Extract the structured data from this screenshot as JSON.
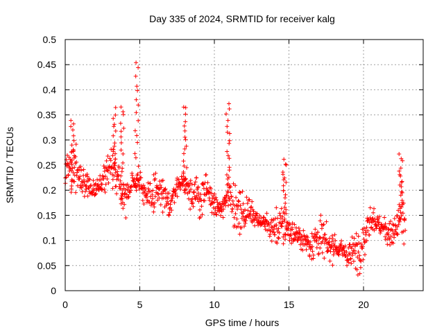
{
  "chart_data": {
    "type": "scatter",
    "title": "Day 335 of 2024, SRMTID for receiver kalg",
    "xlabel": "GPS time / hours",
    "ylabel": "SRMTID / TECUs",
    "xlim": [
      0,
      24
    ],
    "ylim": [
      0,
      0.5
    ],
    "xticks": [
      0,
      5,
      10,
      15,
      20
    ],
    "xtick_labels": [
      "0",
      "5",
      "10",
      "15",
      "20"
    ],
    "yticks": [
      0,
      0.05,
      0.1,
      0.15,
      0.2,
      0.25,
      0.3,
      0.35,
      0.4,
      0.45,
      0.5
    ],
    "ytick_labels": [
      "0",
      "0.05",
      "0.1",
      "0.15",
      "0.2",
      "0.25",
      "0.3",
      "0.35",
      "0.4",
      "0.45",
      "0.5"
    ],
    "grid": true,
    "marker": "+",
    "marker_color": "#ff0000",
    "trend": [
      [
        0.0,
        0.24
      ],
      [
        0.5,
        0.25
      ],
      [
        1.0,
        0.23
      ],
      [
        1.5,
        0.21
      ],
      [
        2.0,
        0.2
      ],
      [
        2.5,
        0.22
      ],
      [
        3.0,
        0.25
      ],
      [
        3.5,
        0.23
      ],
      [
        4.0,
        0.18
      ],
      [
        4.5,
        0.22
      ],
      [
        5.0,
        0.22
      ],
      [
        5.5,
        0.18
      ],
      [
        6.0,
        0.2
      ],
      [
        6.5,
        0.19
      ],
      [
        7.0,
        0.17
      ],
      [
        7.5,
        0.21
      ],
      [
        8.0,
        0.22
      ],
      [
        8.5,
        0.2
      ],
      [
        9.0,
        0.18
      ],
      [
        9.5,
        0.2
      ],
      [
        10.0,
        0.17
      ],
      [
        10.5,
        0.16
      ],
      [
        11.0,
        0.2
      ],
      [
        11.5,
        0.16
      ],
      [
        12.0,
        0.15
      ],
      [
        12.5,
        0.16
      ],
      [
        13.0,
        0.14
      ],
      [
        13.5,
        0.13
      ],
      [
        14.0,
        0.12
      ],
      [
        14.5,
        0.13
      ],
      [
        15.0,
        0.12
      ],
      [
        15.5,
        0.11
      ],
      [
        16.0,
        0.1
      ],
      [
        16.5,
        0.09
      ],
      [
        17.0,
        0.11
      ],
      [
        17.5,
        0.09
      ],
      [
        18.0,
        0.09
      ],
      [
        18.5,
        0.08
      ],
      [
        19.0,
        0.07
      ],
      [
        19.5,
        0.08
      ],
      [
        20.0,
        0.1
      ],
      [
        20.5,
        0.15
      ],
      [
        21.0,
        0.13
      ],
      [
        21.5,
        0.12
      ],
      [
        22.0,
        0.11
      ],
      [
        22.5,
        0.15
      ],
      [
        22.8,
        0.13
      ]
    ],
    "spikes": [
      {
        "x": 0.5,
        "low": 0.2,
        "high": 0.34
      },
      {
        "x": 3.3,
        "low": 0.2,
        "high": 0.36
      },
      {
        "x": 3.8,
        "low": 0.18,
        "high": 0.37
      },
      {
        "x": 4.8,
        "low": 0.2,
        "high": 0.455
      },
      {
        "x": 8.0,
        "low": 0.2,
        "high": 0.37
      },
      {
        "x": 10.9,
        "low": 0.2,
        "high": 0.37
      },
      {
        "x": 14.7,
        "low": 0.15,
        "high": 0.26
      },
      {
        "x": 22.5,
        "low": 0.15,
        "high": 0.27
      }
    ]
  }
}
